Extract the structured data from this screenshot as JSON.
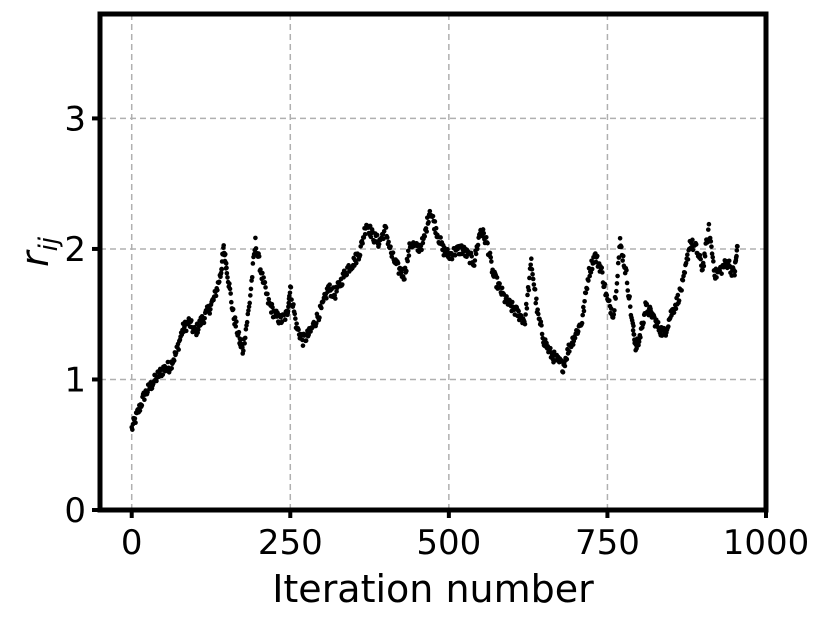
{
  "chart_data": {
    "type": "scatter",
    "title": "",
    "xlabel": "Iteration number",
    "ylabel_main": "r",
    "ylabel_sub": "ij",
    "xlim": [
      -50,
      1000
    ],
    "ylim": [
      0,
      3.8
    ],
    "xticks": [
      0,
      250,
      500,
      750,
      1000
    ],
    "xtick_labels": [
      "0",
      "250",
      "500",
      "750",
      "1000"
    ],
    "yticks": [
      0,
      1,
      2,
      3
    ],
    "ytick_labels": [
      "0",
      "1",
      "2",
      "3"
    ],
    "grid": true,
    "marker_color": "#000000",
    "anchors": [
      [
        0,
        0.62
      ],
      [
        10,
        0.75
      ],
      [
        20,
        0.88
      ],
      [
        30,
        0.95
      ],
      [
        40,
        1.02
      ],
      [
        50,
        1.08
      ],
      [
        60,
        1.1
      ],
      [
        70,
        1.2
      ],
      [
        80,
        1.38
      ],
      [
        90,
        1.44
      ],
      [
        100,
        1.36
      ],
      [
        110,
        1.45
      ],
      [
        120,
        1.52
      ],
      [
        130,
        1.62
      ],
      [
        140,
        1.8
      ],
      [
        145,
        2.0
      ],
      [
        150,
        1.85
      ],
      [
        160,
        1.5
      ],
      [
        170,
        1.3
      ],
      [
        175,
        1.22
      ],
      [
        185,
        1.55
      ],
      [
        195,
        2.05
      ],
      [
        205,
        1.8
      ],
      [
        215,
        1.6
      ],
      [
        225,
        1.5
      ],
      [
        235,
        1.45
      ],
      [
        245,
        1.5
      ],
      [
        250,
        1.7
      ],
      [
        260,
        1.4
      ],
      [
        270,
        1.3
      ],
      [
        280,
        1.35
      ],
      [
        290,
        1.45
      ],
      [
        300,
        1.55
      ],
      [
        310,
        1.7
      ],
      [
        320,
        1.65
      ],
      [
        330,
        1.75
      ],
      [
        340,
        1.85
      ],
      [
        350,
        1.9
      ],
      [
        360,
        1.98
      ],
      [
        370,
        2.2
      ],
      [
        380,
        2.1
      ],
      [
        390,
        2.05
      ],
      [
        400,
        2.15
      ],
      [
        410,
        1.95
      ],
      [
        420,
        1.85
      ],
      [
        430,
        1.8
      ],
      [
        440,
        2.05
      ],
      [
        450,
        2.0
      ],
      [
        460,
        2.05
      ],
      [
        470,
        2.3
      ],
      [
        480,
        2.15
      ],
      [
        490,
        2.0
      ],
      [
        500,
        1.95
      ],
      [
        510,
        1.98
      ],
      [
        520,
        2.0
      ],
      [
        530,
        1.95
      ],
      [
        540,
        1.9
      ],
      [
        550,
        2.15
      ],
      [
        560,
        2.05
      ],
      [
        570,
        1.8
      ],
      [
        580,
        1.7
      ],
      [
        590,
        1.6
      ],
      [
        600,
        1.55
      ],
      [
        610,
        1.5
      ],
      [
        620,
        1.45
      ],
      [
        630,
        1.9
      ],
      [
        640,
        1.5
      ],
      [
        650,
        1.3
      ],
      [
        660,
        1.2
      ],
      [
        670,
        1.15
      ],
      [
        680,
        1.1
      ],
      [
        690,
        1.25
      ],
      [
        700,
        1.35
      ],
      [
        710,
        1.45
      ],
      [
        720,
        1.8
      ],
      [
        730,
        1.95
      ],
      [
        740,
        1.85
      ],
      [
        750,
        1.6
      ],
      [
        760,
        1.5
      ],
      [
        770,
        2.05
      ],
      [
        780,
        1.8
      ],
      [
        790,
        1.4
      ],
      [
        795,
        1.25
      ],
      [
        800,
        1.3
      ],
      [
        810,
        1.55
      ],
      [
        820,
        1.5
      ],
      [
        830,
        1.4
      ],
      [
        840,
        1.35
      ],
      [
        850,
        1.5
      ],
      [
        860,
        1.6
      ],
      [
        870,
        1.75
      ],
      [
        880,
        2.05
      ],
      [
        890,
        2.0
      ],
      [
        900,
        1.85
      ],
      [
        910,
        2.15
      ],
      [
        920,
        1.8
      ],
      [
        930,
        1.85
      ],
      [
        940,
        1.9
      ],
      [
        950,
        1.8
      ],
      [
        955,
        2.02
      ]
    ],
    "points_per_segment": 10
  }
}
